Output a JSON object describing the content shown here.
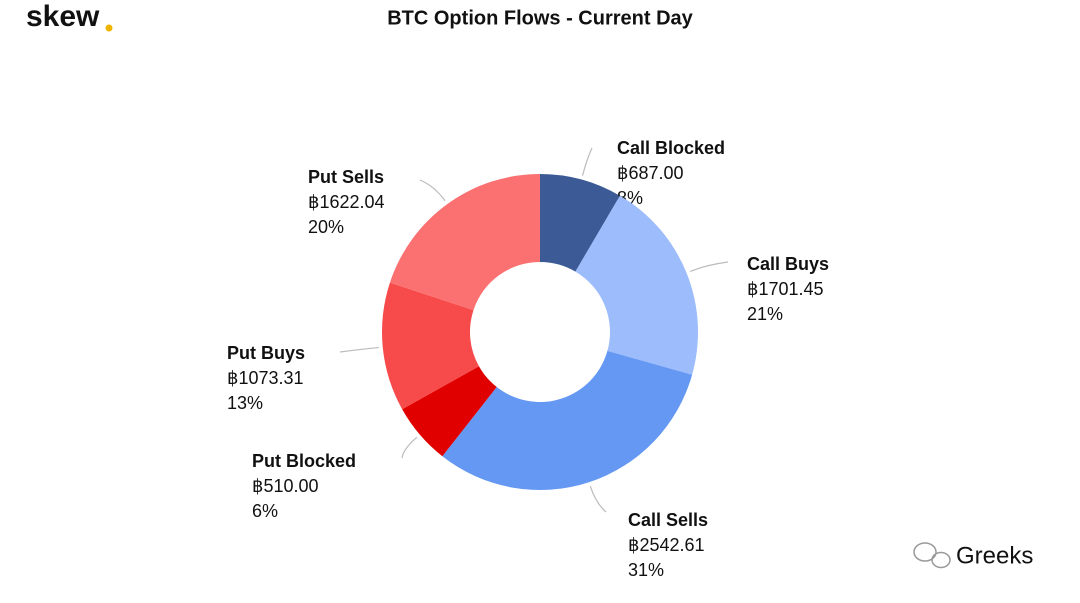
{
  "logo": "skew",
  "watermark": "Greeks",
  "chart_data": {
    "type": "donut",
    "title": "BTC Option Flows - Current Day",
    "categories": [
      "Call Blocked",
      "Call Buys",
      "Call Sells",
      "Put Blocked",
      "Put Buys",
      "Put Sells"
    ],
    "values": [
      687.0,
      1701.45,
      2542.61,
      510.0,
      1073.31,
      1622.04
    ],
    "value_labels": [
      "฿687.00",
      "฿1701.45",
      "฿2542.61",
      "฿510.00",
      "฿1073.31",
      "฿1622.04"
    ],
    "percent_labels": [
      "8%",
      "21%",
      "31%",
      "6%",
      "13%",
      "20%"
    ],
    "colors": [
      "#3b5a96",
      "#9dbcfb",
      "#6498f3",
      "#e00000",
      "#f74a4a",
      "#fb7070"
    ]
  }
}
